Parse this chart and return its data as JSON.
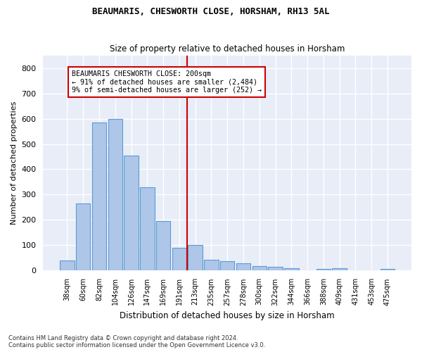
{
  "title": "BEAUMARIS, CHESWORTH CLOSE, HORSHAM, RH13 5AL",
  "subtitle": "Size of property relative to detached houses in Horsham",
  "xlabel": "Distribution of detached houses by size in Horsham",
  "ylabel": "Number of detached properties",
  "categories": [
    "38sqm",
    "60sqm",
    "82sqm",
    "104sqm",
    "126sqm",
    "147sqm",
    "169sqm",
    "191sqm",
    "213sqm",
    "235sqm",
    "257sqm",
    "278sqm",
    "300sqm",
    "322sqm",
    "344sqm",
    "366sqm",
    "388sqm",
    "409sqm",
    "431sqm",
    "453sqm",
    "475sqm"
  ],
  "values": [
    40,
    265,
    585,
    600,
    455,
    328,
    195,
    90,
    102,
    42,
    37,
    30,
    18,
    15,
    10,
    0,
    8,
    10,
    0,
    0,
    7
  ],
  "bar_color": "#aec6e8",
  "bar_edge_color": "#5b9bd5",
  "vline_x": 7.5,
  "vline_color": "#cc0000",
  "annotation_title": "BEAUMARIS CHESWORTH CLOSE: 200sqm",
  "annotation_line1": "← 91% of detached houses are smaller (2,484)",
  "annotation_line2": "9% of semi-detached houses are larger (252) →",
  "annotation_box_color": "#cc0000",
  "background_color": "#e8edf8",
  "plot_bg_color": "#e8edf8",
  "fig_bg_color": "#ffffff",
  "grid_color": "#ffffff",
  "ylim": [
    0,
    850
  ],
  "yticks": [
    0,
    100,
    200,
    300,
    400,
    500,
    600,
    700,
    800
  ],
  "footnote1": "Contains HM Land Registry data © Crown copyright and database right 2024.",
  "footnote2": "Contains public sector information licensed under the Open Government Licence v3.0."
}
